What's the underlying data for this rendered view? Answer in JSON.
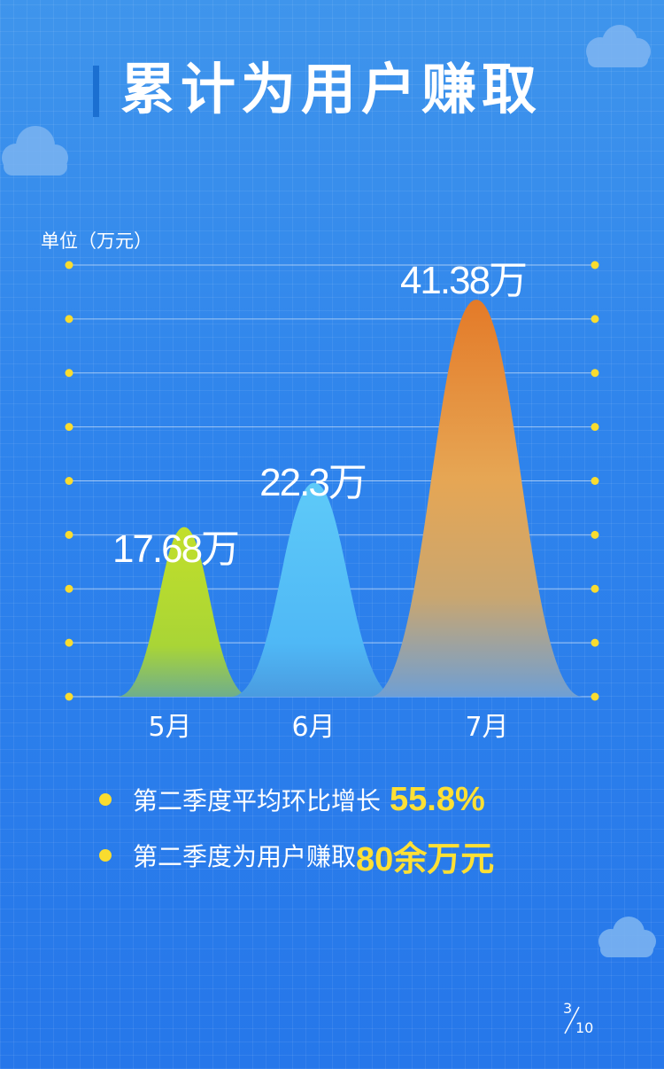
{
  "title": "累计为用户赚取",
  "unit_label": "单位（万元）",
  "chart_data": {
    "type": "area",
    "categories": [
      "5月",
      "6月",
      "7月"
    ],
    "values": [
      17.68,
      22.3,
      41.38
    ],
    "value_labels": [
      "17.68万",
      "22.3万",
      "41.38万"
    ],
    "ylabel": "单位（万元）",
    "ylim": [
      0,
      45
    ],
    "grid": true,
    "colors": {
      "may": [
        "#c2df2a",
        "#7fc84a"
      ],
      "june": [
        "#5ecaf8",
        "#3aa6f2"
      ],
      "july": [
        "#e47b2a",
        "#e6a95a",
        "#7aa8d8"
      ],
      "grid_dot": "#f9dc2f"
    }
  },
  "stats": [
    {
      "text": "第二季度平均环比增长",
      "highlight": "55.8%"
    },
    {
      "text": "第二季度为用户赚取",
      "highlight": "80余万元"
    }
  ],
  "page": {
    "current": "3",
    "total": "10"
  },
  "colors": {
    "accent_yellow": "#ffe034",
    "title_bar": "#1b6fd1"
  }
}
